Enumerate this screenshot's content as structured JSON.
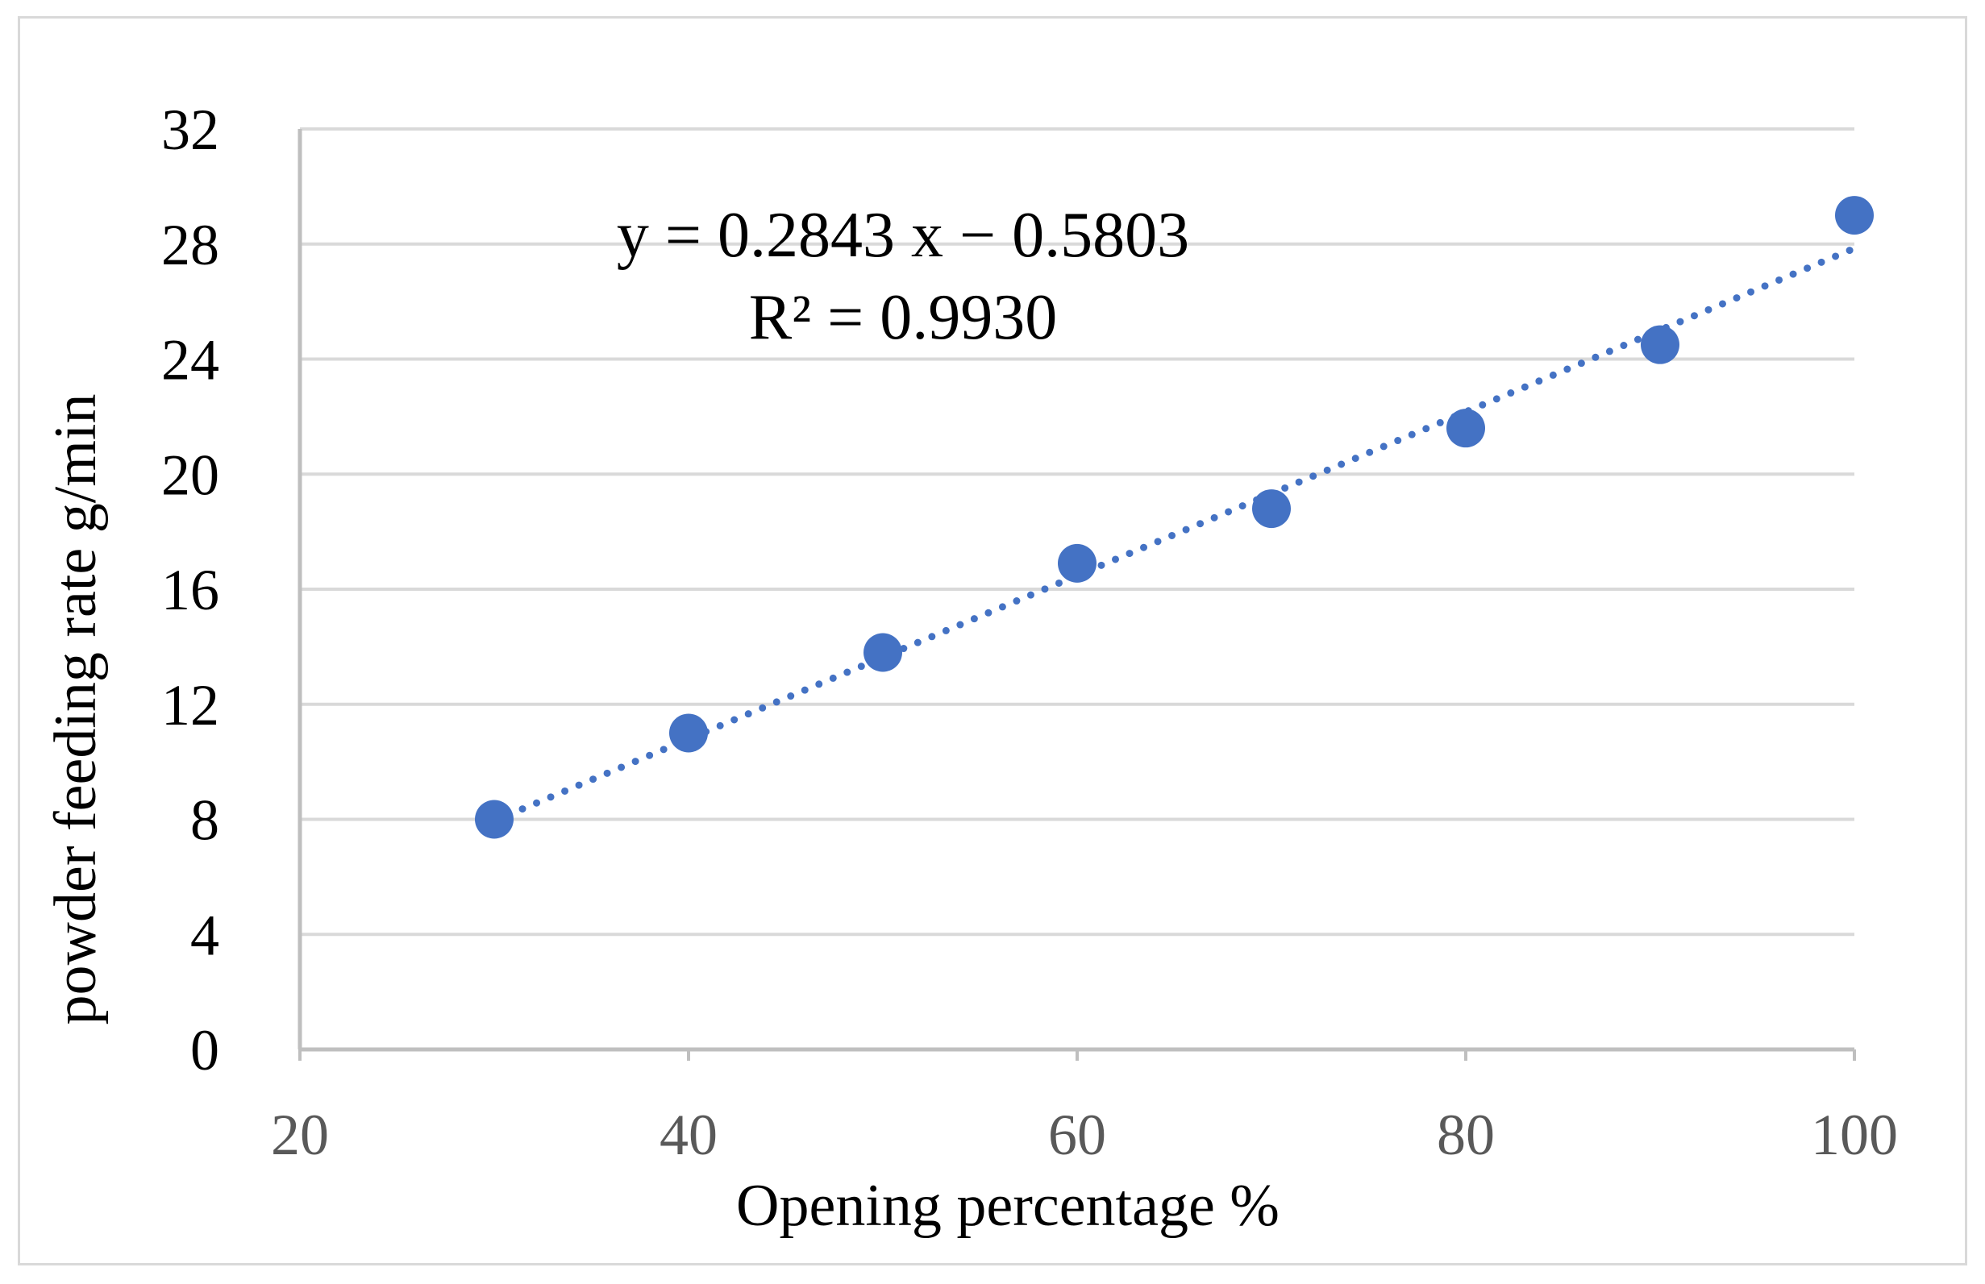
{
  "chart_data": {
    "type": "scatter",
    "x": [
      30,
      40,
      50,
      60,
      70,
      80,
      90,
      100
    ],
    "y": [
      8.0,
      11.0,
      13.8,
      16.9,
      18.8,
      21.6,
      24.5,
      29.0
    ],
    "xlabel": "Opening percentage %",
    "ylabel": "powder feeding rate g/min",
    "xlim": [
      20,
      100
    ],
    "ylim": [
      0,
      32
    ],
    "x_ticks": [
      "20",
      "40",
      "60",
      "80",
      "100"
    ],
    "y_ticks": [
      "0",
      "4",
      "8",
      "12",
      "16",
      "20",
      "24",
      "28",
      "32"
    ],
    "grid": "horizontal",
    "trendline": {
      "type": "linear",
      "style": "dotted",
      "slope": 0.2843,
      "intercept": -0.5803,
      "equation_label": "y = 0.2843 x − 0.5803",
      "r2_label": "R² = 0.9930"
    },
    "colors": {
      "marker": "#4472c4",
      "trendline": "#4472c4",
      "grid": "#d9d9d9",
      "axis": "#bfbfbf"
    }
  }
}
